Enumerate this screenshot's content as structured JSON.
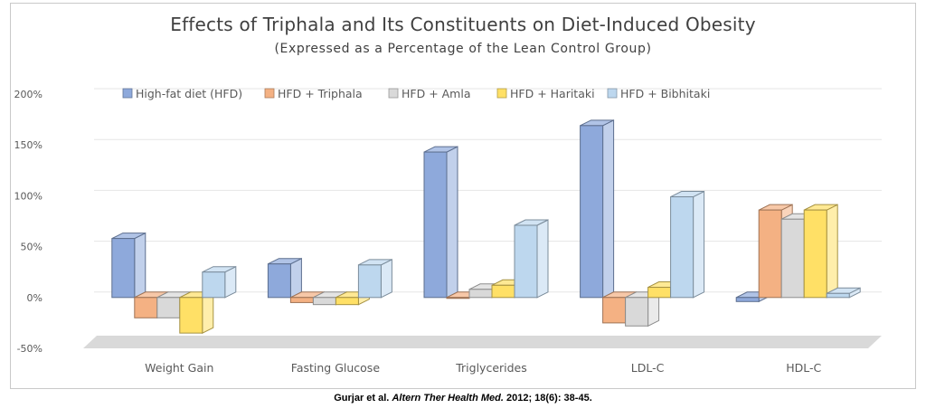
{
  "chart_data": {
    "type": "bar",
    "title": "Effects of Triphala and Its Constituents on Diet-Induced Obesity",
    "subtitle": "(Expressed as a Percentage of the Lean Control Group)",
    "xlabel": "",
    "ylabel": "",
    "ylim": [
      -50,
      200
    ],
    "yticks": [
      "200%",
      "150%",
      "100%",
      "50%",
      "0%",
      "-50%"
    ],
    "ytick_values": [
      200,
      150,
      100,
      50,
      0,
      -50
    ],
    "grid": true,
    "legend_position": "top",
    "categories": [
      "Weight Gain",
      "Fasting Glucose",
      "Triglycerides",
      "LDL-C",
      "HDL-C"
    ],
    "series": [
      {
        "name": "High-fat diet (HFD)",
        "color": "#8EA9DB",
        "values": [
          58,
          33,
          143,
          169,
          -4
        ]
      },
      {
        "name": "HFD + Triphala",
        "color": "#F4B183",
        "values": [
          -20,
          -5,
          0,
          -25,
          86
        ]
      },
      {
        "name": "HFD + Amla",
        "color": "#D9D9D9",
        "values": [
          -20,
          -7,
          8,
          -28,
          77
        ]
      },
      {
        "name": "HFD + Haritaki",
        "color": "#FFE066",
        "values": [
          -35,
          -7,
          12,
          10,
          86
        ]
      },
      {
        "name": "HFD + Bibhitaki",
        "color": "#BDD7EE",
        "values": [
          25,
          32,
          71,
          99,
          4
        ]
      }
    ]
  },
  "citation": {
    "authors": "Gurjar et al.",
    "journal": "Altern Ther Health Med.",
    "details": "2012; 18(6): 38-45."
  }
}
